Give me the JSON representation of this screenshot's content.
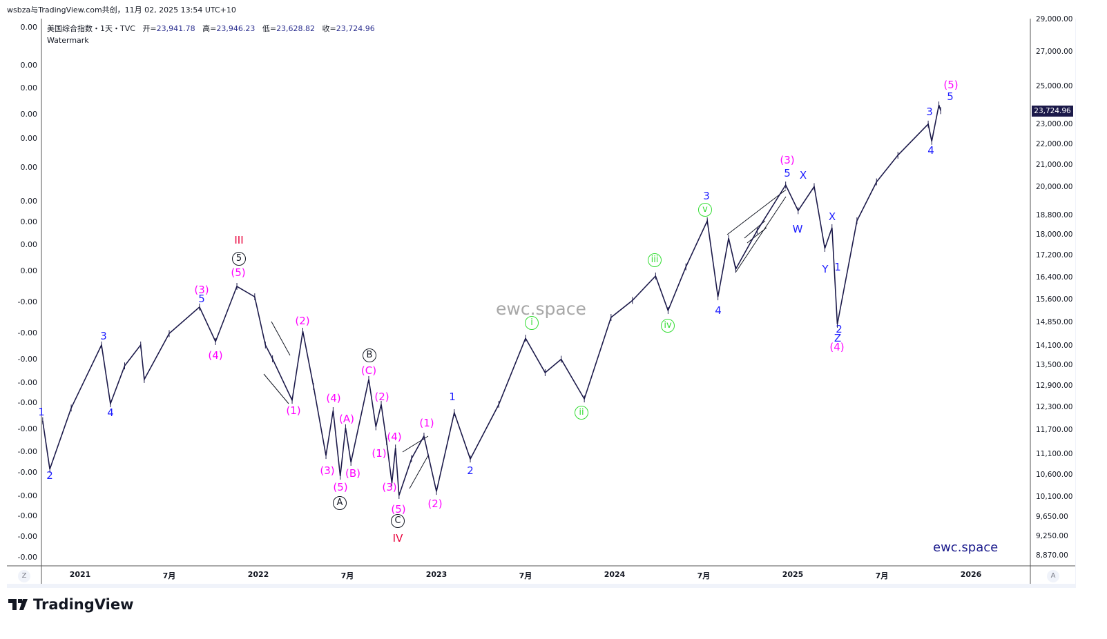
{
  "caption": "wsbza与TradingView.com共创，11月 02, 2025 13:54 UTC+10",
  "legend": {
    "symbol": "美国综合指数・1天・TVC",
    "open_label": "开=",
    "open": "23,941.78",
    "high_label": "高=",
    "high": "23,946.23",
    "low_label": "低=",
    "low": "23,628.82",
    "close_label": "收=",
    "close": "23,724.96",
    "watermark_label": "Watermark"
  },
  "left_axis": [
    "0.00",
    "0.00",
    "0.00",
    "0.00",
    "0.00",
    "0.00",
    "0.00",
    "0.00",
    "0.00",
    "0.00",
    "-0.00",
    "-0.00",
    "-0.00",
    "-0.00",
    "-0.00",
    "-0.00",
    "-0.00",
    "-0.00",
    "-0.00",
    "-0.00",
    "-0.00",
    "-0.00"
  ],
  "last_price": "23,724.96",
  "buttons": {
    "z": "Z",
    "a": "A"
  },
  "watermark_center": "ewc.space",
  "watermark_corner": "ewc.space",
  "logo_text": "TradingView",
  "colors": {
    "line": "#1c1a4a",
    "blue": "#1d1dff",
    "magenta": "#ff00ff",
    "green": "#33dd33",
    "red": "#e8003a",
    "black": "#131722"
  },
  "chart_data": {
    "type": "line",
    "title": "美国综合指数・1天・TVC",
    "scale": "log",
    "ylim": [
      8700,
      29500
    ],
    "y_ticks": [
      29000,
      27000,
      25000,
      23000,
      22000,
      21000,
      20000,
      18800,
      18000,
      17200,
      16400,
      15600,
      14850,
      14100,
      13500,
      12900,
      12300,
      11700,
      11100,
      10600,
      10100,
      9650,
      9250,
      8870
    ],
    "y_tick_labels": [
      "29,000.00",
      "27,000.00",
      "25,000.00",
      "23,000.00",
      "22,000.00",
      "21,000.00",
      "20,000.00",
      "18,800.00",
      "18,000.00",
      "17,200.00",
      "16,400.00",
      "15,600.00",
      "14,850.00",
      "14,100.00",
      "13,500.00",
      "12,900.00",
      "12,300.00",
      "11,700.00",
      "11,100.00",
      "10,600.00",
      "10,100.00",
      "9,650.00",
      "9,250.00",
      "8,870.00"
    ],
    "x_ticks": [
      2021,
      2021.5,
      2022,
      2022.5,
      2023,
      2023.5,
      2024,
      2024.5,
      2025,
      2025.5,
      2026
    ],
    "x_tick_labels": [
      "2021",
      "7月",
      "2022",
      "7月",
      "2023",
      "7月",
      "2024",
      "7月",
      "2025",
      "7月",
      "2026"
    ],
    "series": [
      {
        "name": "close (approx. pivots, decimal year / price)",
        "points": [
          [
            2020.79,
            11960
          ],
          [
            2020.83,
            10745
          ],
          [
            2020.95,
            12300
          ],
          [
            2021.12,
            14138
          ],
          [
            2021.17,
            12417
          ],
          [
            2021.25,
            13500
          ],
          [
            2021.34,
            14138
          ],
          [
            2021.36,
            13100
          ],
          [
            2021.5,
            14500
          ],
          [
            2021.67,
            15375
          ],
          [
            2021.76,
            14245
          ],
          [
            2021.88,
            16092
          ],
          [
            2021.98,
            15725
          ],
          [
            2022.04,
            14138
          ],
          [
            2022.08,
            13713
          ],
          [
            2022.19,
            12512
          ],
          [
            2022.25,
            14575
          ],
          [
            2022.31,
            12900
          ],
          [
            2022.38,
            11075
          ],
          [
            2022.42,
            12230
          ],
          [
            2022.46,
            10580
          ],
          [
            2022.49,
            11775
          ],
          [
            2022.52,
            10910
          ],
          [
            2022.62,
            13100
          ],
          [
            2022.66,
            11800
          ],
          [
            2022.69,
            12400
          ],
          [
            2022.72,
            11420
          ],
          [
            2022.75,
            10420
          ],
          [
            2022.77,
            11260
          ],
          [
            2022.79,
            10140
          ],
          [
            2022.86,
            11000
          ],
          [
            2022.93,
            11560
          ],
          [
            2023.0,
            10230
          ],
          [
            2023.1,
            12175
          ],
          [
            2023.19,
            10990
          ],
          [
            2023.35,
            12400
          ],
          [
            2023.5,
            14350
          ],
          [
            2023.61,
            13300
          ],
          [
            2023.7,
            13700
          ],
          [
            2023.83,
            12550
          ],
          [
            2023.98,
            15025
          ],
          [
            2024.1,
            15600
          ],
          [
            2024.23,
            16465
          ],
          [
            2024.3,
            15255
          ],
          [
            2024.4,
            16800
          ],
          [
            2024.52,
            18600
          ],
          [
            2024.58,
            15725
          ],
          [
            2024.64,
            17900
          ],
          [
            2024.68,
            16720
          ],
          [
            2024.8,
            18200
          ],
          [
            2024.96,
            20130
          ],
          [
            2025.03,
            19020
          ],
          [
            2025.12,
            20060
          ],
          [
            2025.18,
            17500
          ],
          [
            2025.22,
            18320
          ],
          [
            2025.25,
            14800
          ],
          [
            2025.36,
            18600
          ],
          [
            2025.47,
            20270
          ],
          [
            2025.59,
            21500
          ],
          [
            2025.76,
            23030
          ],
          [
            2025.78,
            22170
          ],
          [
            2025.82,
            24025
          ],
          [
            2025.83,
            23725
          ]
        ]
      }
    ],
    "annotations": [
      {
        "text": "1",
        "color": "blue"
      },
      {
        "text": "2",
        "color": "blue"
      },
      {
        "text": "3",
        "color": "blue"
      },
      {
        "text": "4",
        "color": "blue"
      },
      {
        "text": "5",
        "color": "blue"
      },
      {
        "text": "(3)",
        "color": "magenta"
      },
      {
        "text": "(4)",
        "color": "magenta"
      },
      {
        "text": "(5)",
        "color": "magenta"
      },
      {
        "text": "5",
        "color": "black",
        "circle": true
      },
      {
        "text": "III",
        "color": "red"
      },
      {
        "text": "(2)",
        "color": "magenta"
      },
      {
        "text": "(1)",
        "color": "magenta"
      },
      {
        "text": "(4)",
        "color": "magenta"
      },
      {
        "text": "(A)",
        "color": "magenta"
      },
      {
        "text": "(3)",
        "color": "magenta"
      },
      {
        "text": "(B)",
        "color": "magenta"
      },
      {
        "text": "(5)",
        "color": "magenta"
      },
      {
        "text": "A",
        "color": "black",
        "circle": true
      },
      {
        "text": "B",
        "color": "black",
        "circle": true
      },
      {
        "text": "(C)",
        "color": "magenta"
      },
      {
        "text": "(2)",
        "color": "magenta"
      },
      {
        "text": "(4)",
        "color": "magenta"
      },
      {
        "text": "(1)",
        "color": "magenta"
      },
      {
        "text": "(3)",
        "color": "magenta"
      },
      {
        "text": "(5)",
        "color": "magenta"
      },
      {
        "text": "C",
        "color": "black",
        "circle": true
      },
      {
        "text": "IV",
        "color": "red"
      },
      {
        "text": "(1)",
        "color": "magenta"
      },
      {
        "text": "(2)",
        "color": "magenta"
      },
      {
        "text": "1",
        "color": "blue"
      },
      {
        "text": "2",
        "color": "blue"
      },
      {
        "text": "i",
        "color": "green",
        "circle": true
      },
      {
        "text": "ii",
        "color": "green",
        "circle": true
      },
      {
        "text": "iii",
        "color": "green",
        "circle": true
      },
      {
        "text": "iv",
        "color": "green",
        "circle": true
      },
      {
        "text": "v",
        "color": "green",
        "circle": true
      },
      {
        "text": "3",
        "color": "blue"
      },
      {
        "text": "4",
        "color": "blue"
      },
      {
        "text": "(3)",
        "color": "magenta"
      },
      {
        "text": "5",
        "color": "blue"
      },
      {
        "text": "X",
        "color": "blue"
      },
      {
        "text": "W",
        "color": "blue"
      },
      {
        "text": "X",
        "color": "blue"
      },
      {
        "text": "Y",
        "color": "blue"
      },
      {
        "text": "1",
        "color": "blue"
      },
      {
        "text": "2",
        "color": "blue"
      },
      {
        "text": "Z",
        "color": "blue"
      },
      {
        "text": "(4)",
        "color": "magenta"
      },
      {
        "text": "3",
        "color": "blue"
      },
      {
        "text": "4",
        "color": "blue"
      },
      {
        "text": "5",
        "color": "blue"
      },
      {
        "text": "(5)",
        "color": "magenta"
      }
    ]
  }
}
